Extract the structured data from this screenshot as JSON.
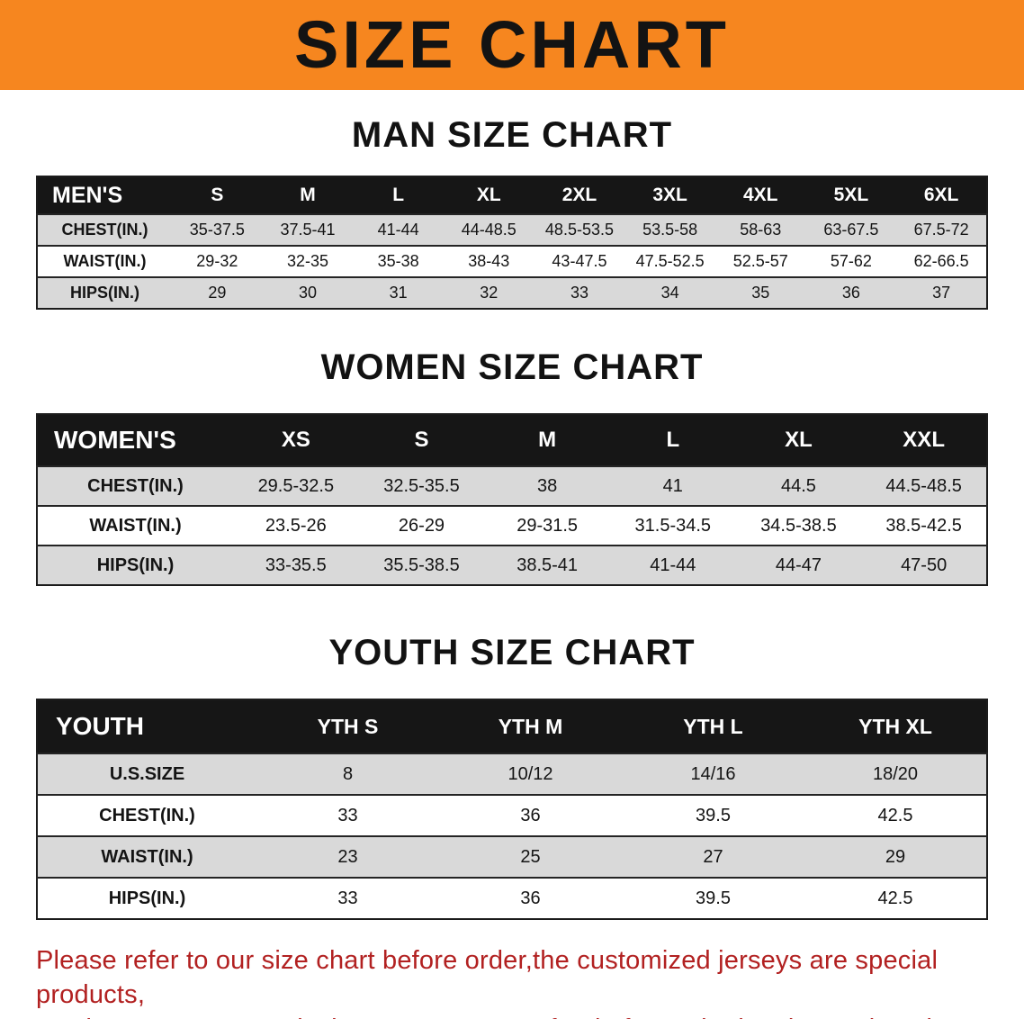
{
  "banner": {
    "title": "SIZE CHART"
  },
  "colors": {
    "banner-bg": "#f6861f",
    "table-header-bg": "#161616",
    "row-alt-bg": "#d9d9d9",
    "disclaimer-red": "#b22121"
  },
  "sections": [
    {
      "heading": "MAN SIZE CHART",
      "table": {
        "header": [
          "MEN'S",
          "S",
          "M",
          "L",
          "XL",
          "2XL",
          "3XL",
          "4XL",
          "5XL",
          "6XL"
        ],
        "rows": [
          [
            "CHEST(IN.)",
            "35-37.5",
            "37.5-41",
            "41-44",
            "44-48.5",
            "48.5-53.5",
            "53.5-58",
            "58-63",
            "63-67.5",
            "67.5-72"
          ],
          [
            "WAIST(IN.)",
            "29-32",
            "32-35",
            "35-38",
            "38-43",
            "43-47.5",
            "47.5-52.5",
            "52.5-57",
            "57-62",
            "62-66.5"
          ],
          [
            "HIPS(IN.)",
            "29",
            "30",
            "31",
            "32",
            "33",
            "34",
            "35",
            "36",
            "37"
          ]
        ]
      }
    },
    {
      "heading": "WOMEN SIZE CHART",
      "table": {
        "header": [
          "WOMEN'S",
          "XS",
          "S",
          "M",
          "L",
          "XL",
          "XXL"
        ],
        "rows": [
          [
            "CHEST(IN.)",
            "29.5-32.5",
            "32.5-35.5",
            "38",
            "41",
            "44.5",
            "44.5-48.5"
          ],
          [
            "WAIST(IN.)",
            "23.5-26",
            "26-29",
            "29-31.5",
            "31.5-34.5",
            "34.5-38.5",
            "38.5-42.5"
          ],
          [
            "HIPS(IN.)",
            "33-35.5",
            "35.5-38.5",
            "38.5-41",
            "41-44",
            "44-47",
            "47-50"
          ]
        ]
      }
    },
    {
      "heading": "YOUTH SIZE CHART",
      "table": {
        "header": [
          "YOUTH",
          "YTH S",
          "YTH M",
          "YTH L",
          "YTH XL"
        ],
        "rows": [
          [
            "U.S.SIZE",
            "8",
            "10/12",
            "14/16",
            "18/20"
          ],
          [
            "CHEST(IN.)",
            "33",
            "36",
            "39.5",
            "42.5"
          ],
          [
            "WAIST(IN.)",
            "23",
            "25",
            "27",
            "29"
          ],
          [
            "HIPS(IN.)",
            "33",
            "36",
            "39.5",
            "42.5"
          ]
        ]
      }
    }
  ],
  "disclaimer": {
    "line1": "Please refer to our size chart before order,the customized jerseys are special products,",
    "line2": "we don't accept cancel, change, teturn or refund after order has been placed!"
  }
}
